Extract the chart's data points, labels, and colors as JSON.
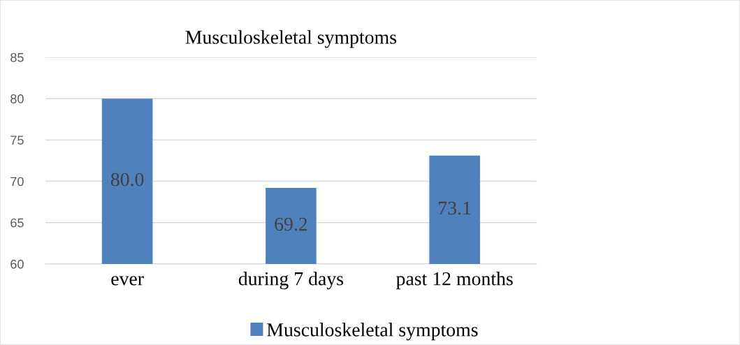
{
  "chart_data": {
    "type": "bar",
    "title": "Musculoskeletal symptoms",
    "categories": [
      "ever",
      "during 7 days",
      "past 12 months"
    ],
    "series": [
      {
        "name": "Musculoskeletal symptoms",
        "color": "#4f81bd",
        "values": [
          80.0,
          69.2,
          73.1
        ]
      }
    ],
    "value_labels": [
      "80.0",
      "69.2",
      "73.1"
    ],
    "ylim": [
      60,
      85
    ],
    "yticks": [
      60,
      65,
      70,
      75,
      80,
      85
    ],
    "grid": "y",
    "legend": "bottom"
  }
}
